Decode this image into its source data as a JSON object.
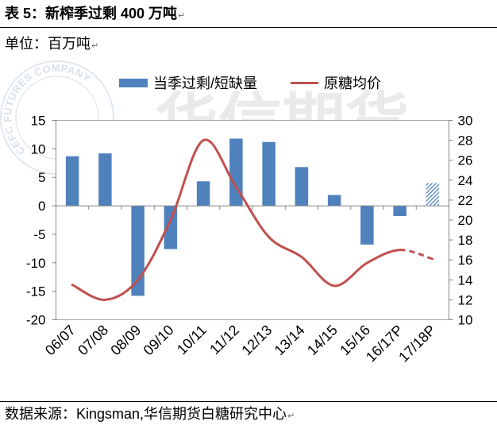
{
  "document": {
    "caption": "表 5：新榨季过剩 400 万吨",
    "unit": "单位：百万吨",
    "source": "数据来源：Kingsman,华信期货白糖研究中心",
    "paragraph_mark": "↵"
  },
  "watermark": {
    "seal_text": "CEFC FUTURES COMPANY",
    "text": "华信期货"
  },
  "chart_data": {
    "type": "bar",
    "categories": [
      "06/07",
      "07/08",
      "08/09",
      "09/10",
      "10/11",
      "11/12",
      "12/13",
      "13/14",
      "14/15",
      "15/16",
      "16/17P",
      "17/18P"
    ],
    "series": [
      {
        "name": "当季过剩/短缺量",
        "type": "bar",
        "axis": "left",
        "color": "#4F81BD",
        "values": [
          8.7,
          9.2,
          -15.8,
          -7.6,
          4.3,
          11.8,
          11.2,
          6.8,
          1.9,
          -6.8,
          -1.8,
          4.0
        ],
        "hatched": [
          false,
          false,
          false,
          false,
          false,
          false,
          false,
          false,
          false,
          false,
          false,
          true
        ]
      },
      {
        "name": "原糖均价",
        "type": "line",
        "axis": "right",
        "color": "#C0504D",
        "smooth": true,
        "values": [
          13.5,
          12.0,
          14.0,
          20.0,
          28.0,
          23.3,
          18.3,
          16.3,
          13.4,
          15.7,
          17.0,
          16.1
        ],
        "dashed": [
          false,
          false,
          false,
          false,
          false,
          false,
          false,
          false,
          false,
          false,
          false,
          true
        ]
      }
    ],
    "y_left": {
      "min": -20,
      "max": 15,
      "ticks": [
        15,
        10,
        5,
        0,
        -5,
        -10,
        -15,
        -20
      ]
    },
    "y_right": {
      "min": 10,
      "max": 30,
      "ticks": [
        30,
        28,
        26,
        24,
        22,
        20,
        18,
        16,
        14,
        12,
        10
      ]
    },
    "grid": false,
    "legend": "top"
  }
}
